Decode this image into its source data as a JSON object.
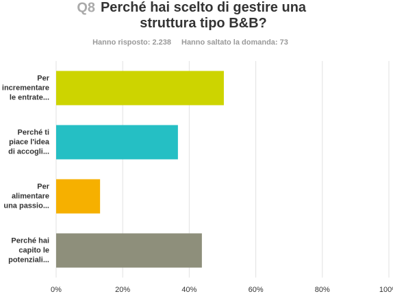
{
  "chart_data": {
    "type": "bar",
    "orientation": "horizontal",
    "question_number": "Q8",
    "title": "Perché hai scelto di gestire una\nstruttura tipo B&B?",
    "answered": "Hanno risposto: 2.238",
    "skipped": "Hanno saltato la domanda: 73",
    "categories": [
      "Per\nincrementare\nle entrate...",
      "Perché ti\npiace l'idea\ndi accogli...",
      "Per\nalimentare\nuna passio...",
      "Perché hai\ncapito le\npotenziali..."
    ],
    "values": [
      50.4,
      36.6,
      13.2,
      43.8
    ],
    "colors": [
      "#cdd400",
      "#25bfc4",
      "#f6b000",
      "#8e8f7b"
    ],
    "xlim": [
      0,
      100
    ],
    "xticks": [
      {
        "value": 0,
        "label": "0%"
      },
      {
        "value": 20,
        "label": "20%"
      },
      {
        "value": 40,
        "label": "40%"
      },
      {
        "value": 60,
        "label": "60%"
      },
      {
        "value": 80,
        "label": "80%"
      },
      {
        "value": 100,
        "label": "100%"
      }
    ],
    "grid": true
  }
}
